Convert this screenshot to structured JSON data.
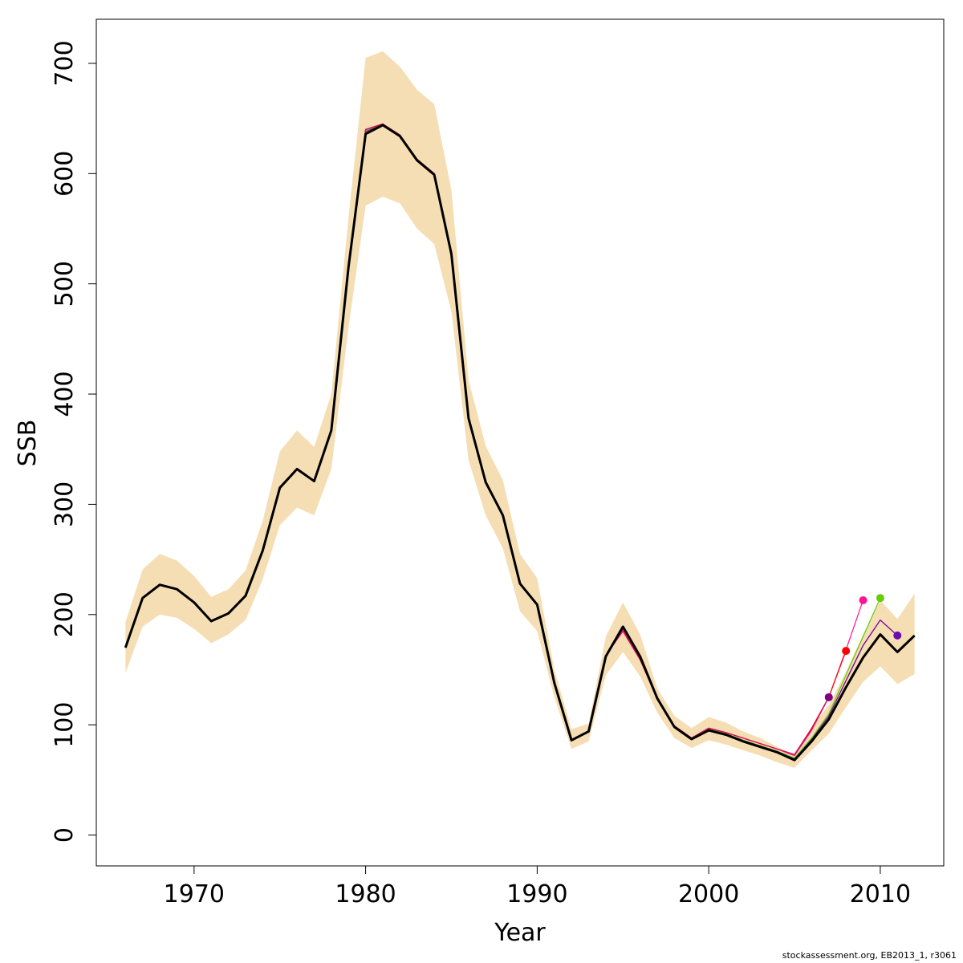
{
  "chart_data": {
    "type": "line",
    "xlabel": "Year",
    "ylabel": "SSB",
    "xlim": [
      1964.3,
      2013.7
    ],
    "ylim": [
      -28,
      740
    ],
    "x_ticks": [
      1970,
      1980,
      1990,
      2000,
      2010
    ],
    "y_ticks": [
      0,
      100,
      200,
      300,
      400,
      500,
      600,
      700
    ],
    "x_tick_labels": [
      "1970",
      "1980",
      "1990",
      "2000",
      "2010"
    ],
    "y_tick_labels": [
      "0",
      "100",
      "200",
      "300",
      "400",
      "500",
      "600",
      "700"
    ],
    "grid": false,
    "legend": "none",
    "confidence_band": {
      "color": "#f5deb3",
      "x": [
        1966,
        1967,
        1968,
        1969,
        1970,
        1971,
        1972,
        1973,
        1974,
        1975,
        1976,
        1977,
        1978,
        1979,
        1980,
        1981,
        1982,
        1983,
        1984,
        1985,
        1986,
        1987,
        1988,
        1989,
        1990,
        1991,
        1992,
        1993,
        1994,
        1995,
        1996,
        1997,
        1998,
        1999,
        2000,
        2001,
        2002,
        2003,
        2004,
        2005,
        2006,
        2007,
        2008,
        2009,
        2010,
        2011,
        2012
      ],
      "upper": [
        193,
        241,
        255,
        249,
        235,
        216,
        223,
        240,
        285,
        348,
        367,
        352,
        400,
        560,
        705,
        711,
        697,
        676,
        663,
        585,
        413,
        353,
        322,
        255,
        233,
        150,
        96,
        101,
        180,
        211,
        182,
        133,
        108,
        97,
        107,
        102,
        94,
        88,
        80,
        72,
        98,
        118,
        148,
        182,
        213,
        196,
        219
      ],
      "lower": [
        147,
        189,
        200,
        197,
        187,
        174,
        182,
        195,
        232,
        281,
        297,
        290,
        332,
        460,
        571,
        579,
        573,
        550,
        536,
        475,
        340,
        290,
        260,
        203,
        185,
        125,
        78,
        85,
        145,
        166,
        144,
        111,
        88,
        79,
        86,
        82,
        77,
        72,
        66,
        61,
        77,
        92,
        116,
        139,
        153,
        137,
        146
      ]
    },
    "series": [
      {
        "color": "#000000",
        "x": [
          1966,
          1967,
          1968,
          1969,
          1970,
          1971,
          1972,
          1973,
          1974,
          1975,
          1976,
          1977,
          1978,
          1979,
          1980,
          1981,
          1982,
          1983,
          1984,
          1985,
          1986,
          1987,
          1988,
          1989,
          1990,
          1991,
          1992,
          1993,
          1994,
          1995,
          1996,
          1997,
          1998,
          1999,
          2000,
          2001,
          2002,
          2003,
          2004,
          2005,
          2006,
          2007,
          2008,
          2009,
          2010,
          2011,
          2012
        ],
        "values": [
          170,
          215,
          227,
          223,
          211,
          194,
          201,
          217,
          258,
          315,
          332,
          321,
          367,
          515,
          636,
          644,
          634,
          612,
          599,
          527,
          378,
          320,
          290,
          228,
          209,
          138,
          86,
          94,
          162,
          189,
          162,
          124,
          98,
          87,
          95,
          91,
          85,
          80,
          75,
          68,
          85,
          105,
          134,
          161,
          182,
          166,
          181
        ]
      },
      {
        "color": "#cc0000",
        "x": [
          1966,
          1967,
          1968,
          1969,
          1970,
          1971,
          1972,
          1973,
          1974,
          1975,
          1976,
          1977,
          1978,
          1979,
          1980,
          1981,
          1982,
          1983,
          1984,
          1985,
          1986,
          1987,
          1988,
          1989,
          1990,
          1991,
          1992,
          1993,
          1994,
          1995,
          1996,
          1997,
          1998,
          1999,
          2000,
          2001,
          2002,
          2003,
          2004,
          2005,
          2006,
          2007,
          2008,
          2009,
          2010,
          2011
        ],
        "values": [
          170,
          215,
          227,
          223,
          211,
          194,
          201,
          217,
          258,
          315,
          332,
          321,
          367,
          516,
          640,
          645,
          635,
          613,
          600,
          528,
          378,
          320,
          290,
          228,
          209,
          138,
          86,
          94,
          162,
          188,
          162,
          124,
          98,
          87,
          96,
          92,
          86,
          81,
          76,
          69,
          87,
          108,
          140,
          172,
          195,
          181
        ],
        "end_point": true
      },
      {
        "color": "#6a0dad",
        "x": [
          1966,
          1967,
          1968,
          1969,
          1970,
          1971,
          1972,
          1973,
          1974,
          1975,
          1976,
          1977,
          1978,
          1979,
          1980,
          1981,
          1982,
          1983,
          1984,
          1985,
          1986,
          1987,
          1988,
          1989,
          1990,
          1991,
          1992,
          1993,
          1994,
          1995,
          1996,
          1997,
          1998,
          1999,
          2000,
          2001,
          2002,
          2003,
          2004,
          2005,
          2006,
          2007,
          2008,
          2009,
          2010,
          2011
        ],
        "values": [
          170,
          215,
          227,
          223,
          211,
          194,
          201,
          217,
          258,
          315,
          332,
          321,
          367,
          516,
          638,
          645,
          635,
          613,
          600,
          528,
          378,
          320,
          290,
          228,
          209,
          138,
          86,
          94,
          162,
          188,
          162,
          124,
          98,
          87,
          96,
          92,
          86,
          81,
          76,
          69,
          87,
          108,
          140,
          172,
          195,
          181
        ],
        "end_point": true
      },
      {
        "color": "#66cc00",
        "x": [
          1966,
          1967,
          1968,
          1969,
          1970,
          1971,
          1972,
          1973,
          1974,
          1975,
          1976,
          1977,
          1978,
          1979,
          1980,
          1981,
          1982,
          1983,
          1984,
          1985,
          1986,
          1987,
          1988,
          1989,
          1990,
          1991,
          1992,
          1993,
          1994,
          1995,
          1996,
          1997,
          1998,
          1999,
          2000,
          2001,
          2002,
          2003,
          2004,
          2005,
          2006,
          2007,
          2008,
          2009,
          2010
        ],
        "values": [
          170,
          215,
          227,
          223,
          211,
          194,
          201,
          217,
          258,
          315,
          332,
          321,
          367,
          516,
          639,
          645,
          635,
          613,
          600,
          528,
          378,
          320,
          290,
          228,
          209,
          138,
          86,
          94,
          162,
          187,
          161,
          124,
          98,
          87,
          96,
          92,
          86,
          81,
          76,
          70,
          88,
          110,
          145,
          180,
          215
        ],
        "end_point": true
      },
      {
        "color": "#ff1493",
        "x": [
          1966,
          1967,
          1968,
          1969,
          1970,
          1971,
          1972,
          1973,
          1974,
          1975,
          1976,
          1977,
          1978,
          1979,
          1980,
          1981,
          1982,
          1983,
          1984,
          1985,
          1986,
          1987,
          1988,
          1989,
          1990,
          1991,
          1992,
          1993,
          1994,
          1995,
          1996,
          1997,
          1998,
          1999,
          2000,
          2001,
          2002,
          2003,
          2004,
          2005,
          2006,
          2007,
          2008,
          2009
        ],
        "values": [
          170,
          215,
          227,
          223,
          211,
          194,
          201,
          217,
          258,
          315,
          332,
          321,
          367,
          516,
          640,
          645,
          635,
          613,
          600,
          529,
          378,
          320,
          290,
          228,
          209,
          138,
          86,
          94,
          163,
          186,
          160,
          124,
          99,
          88,
          97,
          93,
          88,
          83,
          78,
          72,
          95,
          125,
          168,
          213
        ],
        "end_point": true
      },
      {
        "color": "#ff0000",
        "x": [
          1966,
          1967,
          1968,
          1969,
          1970,
          1971,
          1972,
          1973,
          1974,
          1975,
          1976,
          1977,
          1978,
          1979,
          1980,
          1981,
          1982,
          1983,
          1984,
          1985,
          1986,
          1987,
          1988,
          1989,
          1990,
          1991,
          1992,
          1993,
          1994,
          1995,
          1996,
          1997,
          1998,
          1999,
          2000,
          2001,
          2002,
          2003,
          2004,
          2005,
          2006,
          2007,
          2008
        ],
        "values": [
          170,
          215,
          227,
          223,
          211,
          194,
          201,
          217,
          258,
          315,
          332,
          321,
          367,
          516,
          640,
          645,
          635,
          613,
          600,
          529,
          378,
          320,
          290,
          228,
          209,
          138,
          86,
          94,
          163,
          185,
          159,
          124,
          99,
          88,
          97,
          93,
          88,
          83,
          78,
          73,
          97,
          125,
          167
        ],
        "end_point": true
      },
      {
        "color": "#cc1060",
        "x": [
          1966,
          1967,
          1968,
          1969,
          1970,
          1971,
          1972,
          1973,
          1974,
          1975,
          1976,
          1977,
          1978,
          1979,
          1980,
          1981,
          1982,
          1983,
          1984,
          1985,
          1986,
          1987,
          1988,
          1989,
          1990,
          1991,
          1992,
          1993,
          1994,
          1995,
          1996,
          1997,
          1998,
          1999,
          2000,
          2001,
          2002,
          2003,
          2004,
          2005,
          2006,
          2007
        ],
        "values": [
          170,
          215,
          227,
          223,
          211,
          194,
          201,
          217,
          258,
          315,
          332,
          321,
          367,
          516,
          640,
          645,
          635,
          613,
          600,
          529,
          378,
          320,
          290,
          228,
          209,
          138,
          86,
          94,
          163,
          185,
          159,
          124,
          99,
          88,
          97,
          93,
          88,
          83,
          78,
          73,
          96,
          125
        ],
        "end_point": true
      }
    ],
    "end_point_colors": [
      "#800080",
      "#ff0000",
      "#ff1493",
      "#66cc00",
      "#6a0dad"
    ],
    "end_point_x": [
      2007,
      2008,
      2009,
      2010,
      2011
    ],
    "end_point_y": [
      125,
      167,
      213,
      215,
      181
    ]
  },
  "footnote": "stockassessment.org, EB2013_1, r3061"
}
